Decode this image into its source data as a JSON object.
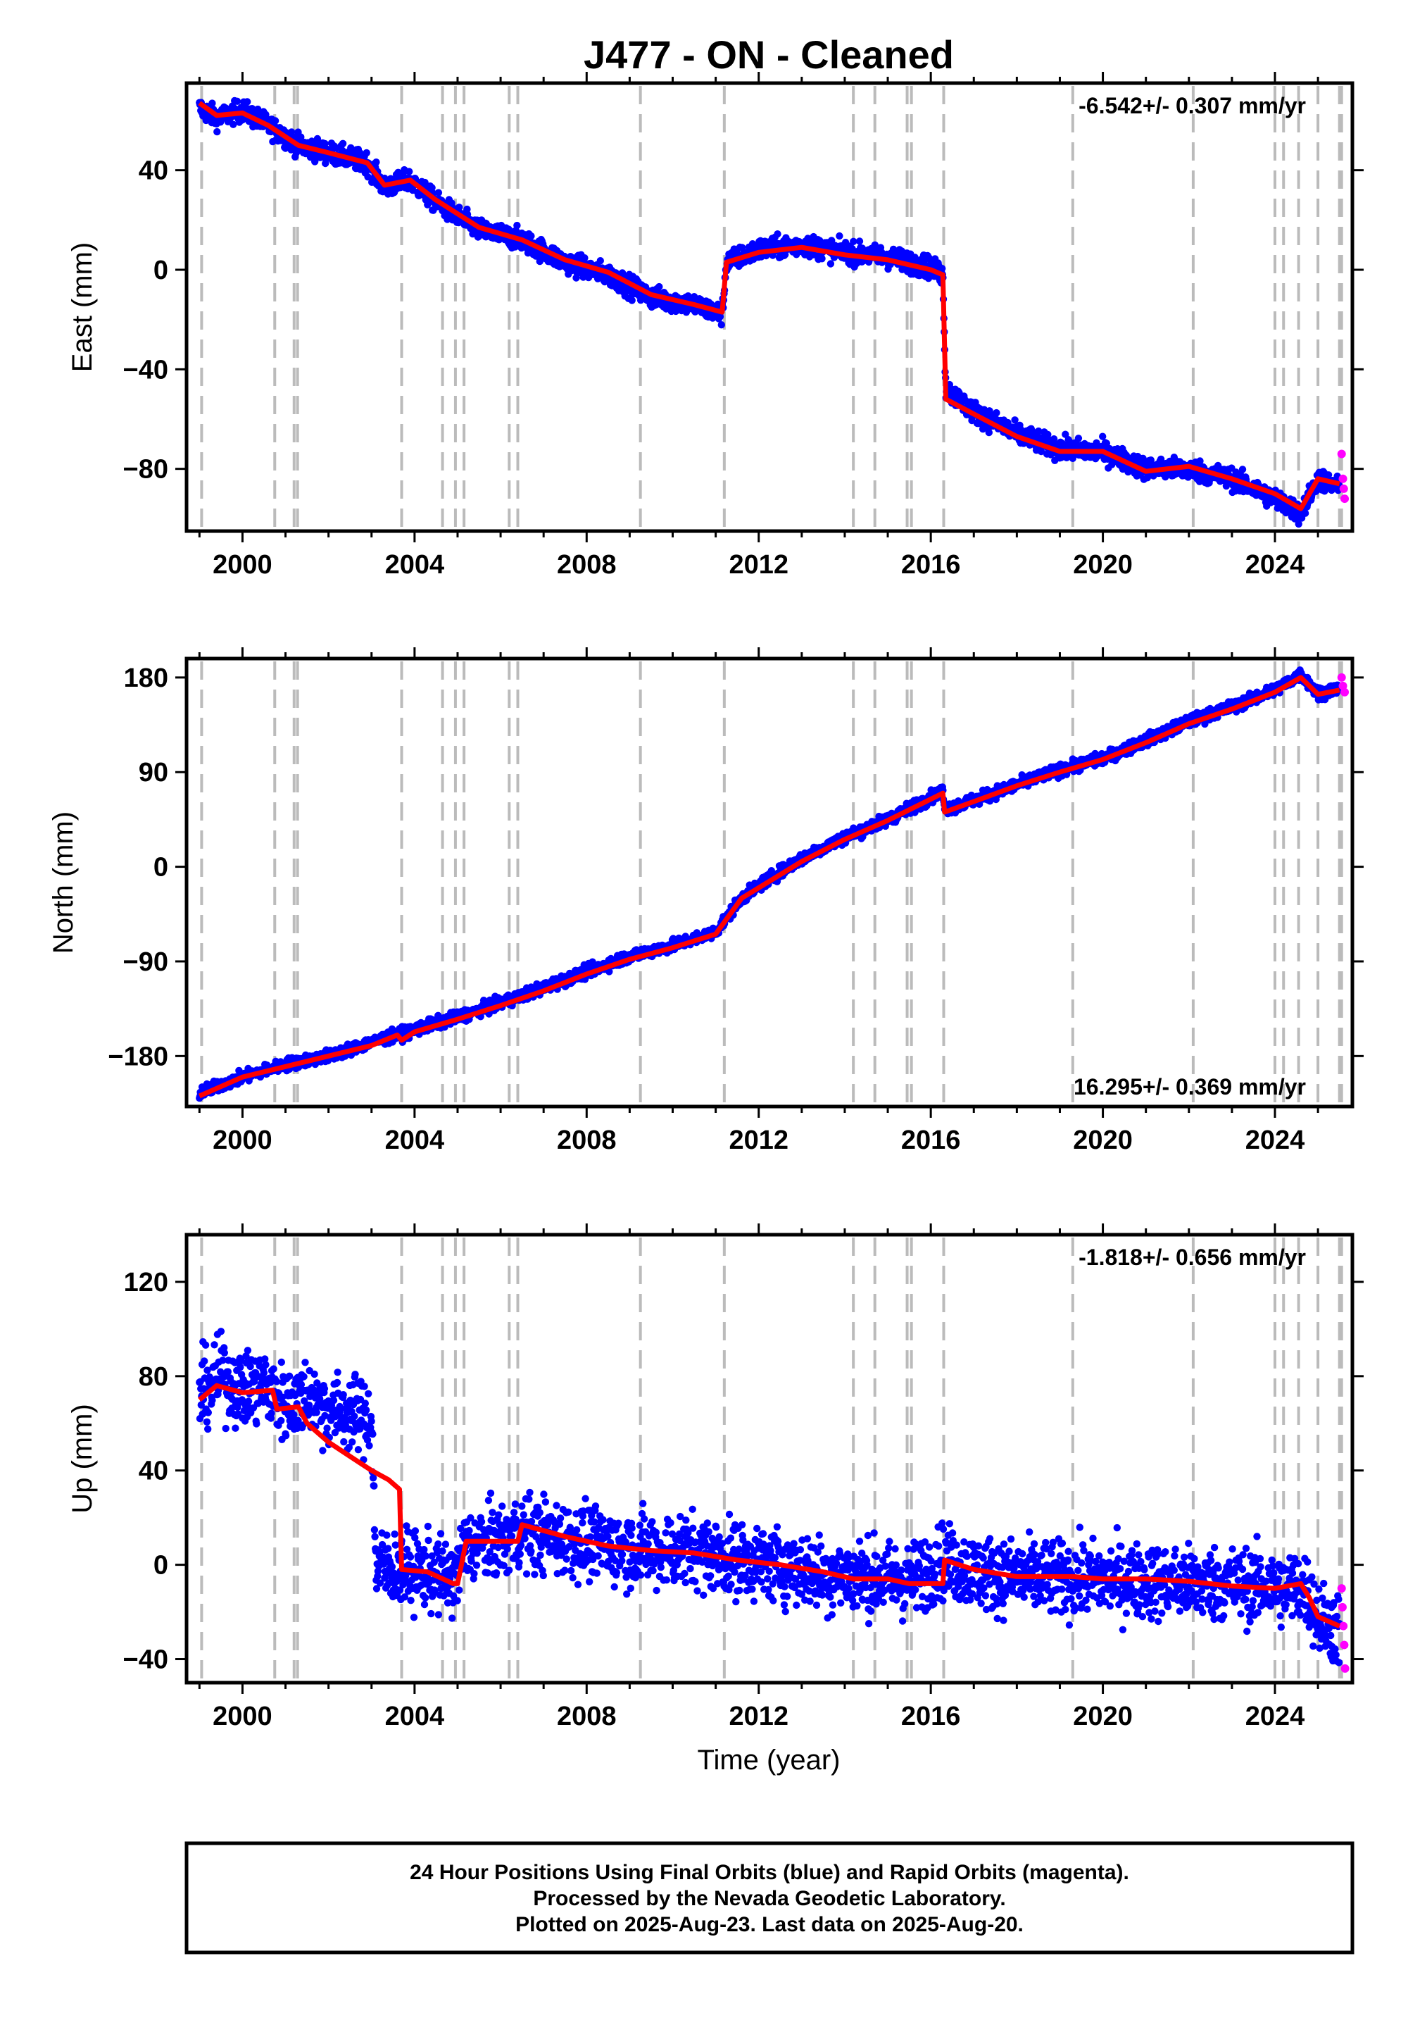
{
  "title": "J477  - ON - Cleaned",
  "xlabel": "Time (year)",
  "colors": {
    "final": "#0000ff",
    "rapid": "#ff00ff",
    "model": "#ff0000",
    "events": "#bbbbbb"
  },
  "footer": {
    "lines": [
      "24 Hour Positions Using Final Orbits (blue) and Rapid Orbits (magenta).",
      "Processed by the Nevada Geodetic Laboratory.",
      "Plotted on 2025-Aug-23. Last data on 2025-Aug-20."
    ]
  },
  "chart_data": [
    {
      "type": "scatter",
      "name": "east",
      "ylabel": "East (mm)",
      "rate_label": "-6.542+/- 0.307 mm/yr",
      "rate_position": "top-right",
      "xlim": [
        1998.7,
        2025.8
      ],
      "ylim": [
        -105,
        75
      ],
      "xticks": [
        2000,
        2004,
        2008,
        2012,
        2016,
        2020,
        2024
      ],
      "yticks": [
        -80,
        -40,
        0,
        40
      ],
      "noise": 3,
      "events": [
        1999.05,
        2000.75,
        2001.2,
        2001.28,
        2003.7,
        2004.65,
        2004.95,
        2005.15,
        2006.2,
        2006.4,
        2009.25,
        2011.2,
        2014.2,
        2014.7,
        2015.45,
        2015.55,
        2016.3,
        2019.3,
        2022.1,
        2024.0,
        2024.2,
        2024.55,
        2025.0,
        2025.5,
        2025.55
      ],
      "series": [
        {
          "name": "Final Orbits",
          "x": [
            1999.0,
            1999.4,
            2000.0,
            2000.6,
            2001.3,
            2002.0,
            2002.9,
            2003.3,
            2003.9,
            2004.5,
            2005.5,
            2006.5,
            2007.5,
            2008.5,
            2009.5,
            2010.5,
            2011.15,
            2011.25,
            2012.0,
            2013.0,
            2014.0,
            2015.0,
            2016.0,
            2016.28,
            2016.35,
            2017.0,
            2018.0,
            2019.0,
            2020.0,
            2021.0,
            2022.0,
            2023.0,
            2024.0,
            2024.6,
            2025.0,
            2025.5
          ],
          "y": [
            65,
            61,
            64,
            58,
            50,
            47,
            43,
            33,
            36,
            27,
            16,
            12,
            3,
            -2,
            -11,
            -14,
            -18,
            3,
            8,
            10,
            7,
            5,
            1,
            -2,
            -48,
            -57,
            -66,
            -72,
            -73,
            -80,
            -80,
            -84,
            -92,
            -98,
            -84,
            -88
          ]
        },
        {
          "name": "Rapid Orbits",
          "x": [
            2025.55,
            2025.58,
            2025.6,
            2025.62
          ],
          "y": [
            -74,
            -84,
            -88,
            -92
          ]
        }
      ],
      "model": {
        "x": [
          1999.0,
          1999.4,
          2000.0,
          2000.6,
          2001.3,
          2002.0,
          2002.9,
          2003.3,
          2003.9,
          2004.5,
          2005.5,
          2006.5,
          2007.5,
          2008.5,
          2009.5,
          2010.5,
          2011.15,
          2011.25,
          2012.0,
          2013.0,
          2014.0,
          2015.0,
          2016.0,
          2016.28,
          2016.35,
          2017.0,
          2018.0,
          2019.0,
          2020.0,
          2021.0,
          2022.0,
          2023.0,
          2024.0,
          2024.6,
          2025.0,
          2025.5
        ],
        "y": [
          67,
          62,
          63,
          58,
          50,
          47,
          43,
          34,
          36,
          28,
          17,
          12,
          4,
          -1,
          -10,
          -14,
          -17,
          3,
          7,
          9,
          6,
          4,
          0,
          -2,
          -52,
          -58,
          -67,
          -73,
          -73,
          -81,
          -79,
          -84,
          -90,
          -96,
          -84,
          -86
        ]
      }
    },
    {
      "type": "scatter",
      "name": "north",
      "ylabel": "North (mm)",
      "rate_label": "16.295+/- 0.369 mm/yr",
      "rate_position": "bottom-right",
      "xlim": [
        1998.7,
        2025.8
      ],
      "ylim": [
        -228,
        198
      ],
      "xticks": [
        2000,
        2004,
        2008,
        2012,
        2016,
        2020,
        2024
      ],
      "yticks": [
        -180,
        -90,
        0,
        90,
        180
      ],
      "noise": 4,
      "events": [
        1999.05,
        2000.75,
        2001.2,
        2001.28,
        2003.7,
        2004.65,
        2004.95,
        2005.15,
        2006.2,
        2006.4,
        2009.25,
        2011.2,
        2014.2,
        2014.7,
        2015.45,
        2015.55,
        2016.3,
        2019.3,
        2022.1,
        2024.0,
        2024.2,
        2024.55,
        2025.0,
        2025.5,
        2025.55
      ],
      "series": [
        {
          "name": "Final Orbits",
          "x": [
            1999.0,
            2000.0,
            2001.0,
            2002.0,
            2003.0,
            2004.0,
            2005.0,
            2006.0,
            2007.0,
            2008.0,
            2009.0,
            2010.0,
            2011.0,
            2011.6,
            2012.0,
            2013.0,
            2014.0,
            2015.0,
            2016.28,
            2016.32,
            2017.0,
            2018.0,
            2019.0,
            2020.0,
            2021.0,
            2022.0,
            2023.0,
            2024.0,
            2024.6,
            2025.0,
            2025.5
          ],
          "y": [
            -215,
            -200,
            -188,
            -180,
            -167,
            -155,
            -143,
            -130,
            -115,
            -100,
            -85,
            -75,
            -62,
            -30,
            -18,
            8,
            28,
            45,
            72,
            55,
            63,
            78,
            92,
            103,
            120,
            138,
            152,
            168,
            183,
            165,
            170
          ]
        },
        {
          "name": "Rapid Orbits",
          "x": [
            2025.55,
            2025.58,
            2025.62
          ],
          "y": [
            180,
            172,
            166
          ]
        }
      ],
      "model": {
        "x": [
          1999.0,
          2000.0,
          2001.0,
          2002.0,
          2003.0,
          2003.6,
          2003.7,
          2004.0,
          2005.0,
          2006.0,
          2007.0,
          2008.0,
          2009.0,
          2010.0,
          2011.0,
          2011.6,
          2012.0,
          2013.0,
          2014.0,
          2015.0,
          2016.28,
          2016.32,
          2017.0,
          2018.0,
          2019.0,
          2020.0,
          2021.0,
          2022.0,
          2023.0,
          2024.0,
          2024.6,
          2025.0,
          2025.5
        ],
        "y": [
          -218,
          -200,
          -190,
          -180,
          -170,
          -160,
          -165,
          -157,
          -145,
          -132,
          -118,
          -102,
          -88,
          -77,
          -64,
          -30,
          -20,
          5,
          26,
          44,
          70,
          52,
          62,
          77,
          90,
          102,
          118,
          136,
          150,
          166,
          180,
          164,
          168
        ]
      }
    },
    {
      "type": "scatter",
      "name": "up",
      "ylabel": "Up (mm)",
      "rate_label": "-1.818+/- 0.656 mm/yr",
      "rate_position": "top-right",
      "xlim": [
        1998.7,
        2025.8
      ],
      "ylim": [
        -50,
        140
      ],
      "xticks": [
        2000,
        2004,
        2008,
        2012,
        2016,
        2020,
        2024
      ],
      "yticks": [
        -40,
        0,
        40,
        80,
        120
      ],
      "noise": 11,
      "events": [
        1999.05,
        2000.75,
        2001.2,
        2001.28,
        2003.7,
        2004.65,
        2004.95,
        2005.15,
        2006.2,
        2006.4,
        2009.25,
        2011.2,
        2014.2,
        2014.7,
        2015.45,
        2015.55,
        2016.3,
        2019.3,
        2022.1,
        2024.0,
        2024.2,
        2024.55,
        2025.0,
        2025.5,
        2025.55
      ],
      "series": [
        {
          "name": "Final Orbits",
          "x": [
            1999.0,
            1999.5,
            2000.0,
            2000.5,
            2001.0,
            2001.5,
            2002.0,
            2002.5,
            2003.0,
            2003.1,
            2003.6,
            2004.0,
            2004.9,
            2005.2,
            2006.0,
            2006.5,
            2007.5,
            2008.5,
            2009.5,
            2010.5,
            2011.5,
            2012.5,
            2013.5,
            2014.5,
            2015.5,
            2016.3,
            2017.0,
            2018.0,
            2019.0,
            2020.0,
            2021.0,
            2022.0,
            2023.0,
            2024.0,
            2024.7,
            2025.0,
            2025.5
          ],
          "y": [
            72,
            80,
            74,
            76,
            68,
            72,
            66,
            64,
            62,
            0,
            -2,
            -2,
            -6,
            8,
            10,
            14,
            11,
            8,
            6,
            6,
            2,
            0,
            -4,
            -5,
            -7,
            2,
            -3,
            -5,
            -6,
            -6,
            -7,
            -8,
            -8,
            -10,
            -10,
            -22,
            -28
          ]
        },
        {
          "name": "Rapid Orbits",
          "x": [
            2025.55,
            2025.57,
            2025.59,
            2025.61,
            2025.63
          ],
          "y": [
            -10,
            -18,
            -26,
            -34,
            -44
          ]
        }
      ],
      "model": {
        "x": [
          1999.0,
          1999.4,
          2000.0,
          2000.7,
          2000.8,
          2001.3,
          2001.5,
          2002.0,
          2002.5,
          2003.0,
          2003.4,
          2003.65,
          2003.7,
          2004.3,
          2004.9,
          2005.0,
          2005.2,
          2006.0,
          2006.4,
          2006.5,
          2007.5,
          2008.5,
          2009.5,
          2010.5,
          2011.5,
          2012.5,
          2013.5,
          2014.2,
          2015.0,
          2015.5,
          2016.28,
          2016.32,
          2017.0,
          2018.0,
          2019.3,
          2020.0,
          2021.0,
          2022.0,
          2023.0,
          2024.0,
          2024.6,
          2024.8,
          2025.0,
          2025.5
        ],
        "y": [
          70,
          76,
          73,
          74,
          66,
          67,
          60,
          52,
          46,
          40,
          36,
          32,
          -2,
          -3,
          -8,
          -8,
          10,
          10,
          10,
          17,
          12,
          8,
          6,
          5,
          2,
          0,
          -3,
          -6,
          -6,
          -8,
          -8,
          2,
          -2,
          -5,
          -5,
          -6,
          -6,
          -7,
          -9,
          -10,
          -8,
          -14,
          -22,
          -26
        ]
      }
    }
  ]
}
